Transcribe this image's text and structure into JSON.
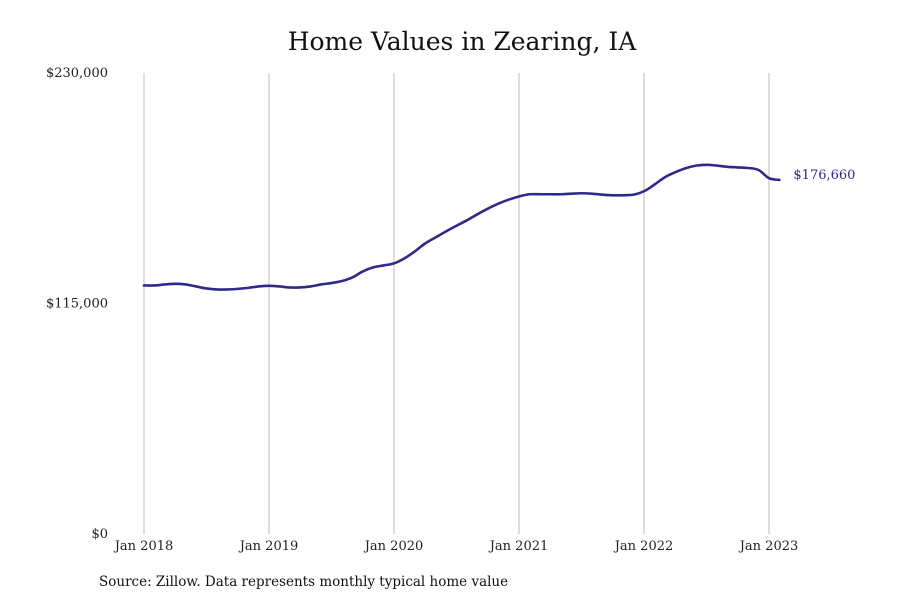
{
  "chart_data": {
    "type": "line",
    "title": "Home Values in Zearing, IA",
    "xlabel": "",
    "ylabel": "",
    "ylim": [
      0,
      230000
    ],
    "y_ticks": [
      {
        "value": 0,
        "label": "$0"
      },
      {
        "value": 115000,
        "label": "$115,000"
      },
      {
        "value": 230000,
        "label": "$230,000"
      }
    ],
    "x_ticks": [
      {
        "value": "2018-01",
        "label": "Jan 2018"
      },
      {
        "value": "2019-01",
        "label": "Jan 2019"
      },
      {
        "value": "2020-01",
        "label": "Jan 2020"
      },
      {
        "value": "2021-01",
        "label": "Jan 2021"
      },
      {
        "value": "2022-01",
        "label": "Jan 2022"
      },
      {
        "value": "2023-01",
        "label": "Jan 2023"
      }
    ],
    "grid": "vertical",
    "line_color": "#2e2a8a",
    "series": [
      {
        "name": "",
        "x": [
          "2018-01",
          "2018-02",
          "2018-03",
          "2018-04",
          "2018-05",
          "2018-06",
          "2018-07",
          "2018-08",
          "2018-09",
          "2018-10",
          "2018-11",
          "2018-12",
          "2019-01",
          "2019-02",
          "2019-03",
          "2019-04",
          "2019-05",
          "2019-06",
          "2019-07",
          "2019-08",
          "2019-09",
          "2019-10",
          "2019-11",
          "2019-12",
          "2020-01",
          "2020-02",
          "2020-03",
          "2020-04",
          "2020-05",
          "2020-06",
          "2020-07",
          "2020-08",
          "2020-09",
          "2020-10",
          "2020-11",
          "2020-12",
          "2021-01",
          "2021-02",
          "2021-03",
          "2021-04",
          "2021-05",
          "2021-06",
          "2021-07",
          "2021-08",
          "2021-09",
          "2021-10",
          "2021-11",
          "2021-12",
          "2022-01",
          "2022-02",
          "2022-03",
          "2022-04",
          "2022-05",
          "2022-06",
          "2022-07",
          "2022-08",
          "2022-09",
          "2022-10",
          "2022-11",
          "2022-12",
          "2023-01",
          "2023-02"
        ],
        "values": [
          124000,
          124000,
          124500,
          124800,
          124500,
          123500,
          122500,
          122000,
          122000,
          122300,
          122800,
          123500,
          123800,
          123500,
          123000,
          123000,
          123500,
          124500,
          125200,
          126200,
          128000,
          131000,
          133000,
          134000,
          135000,
          137500,
          141000,
          145000,
          148000,
          151000,
          153800,
          156500,
          159500,
          162300,
          164800,
          166800,
          168400,
          169500,
          169500,
          169500,
          169500,
          169800,
          170000,
          169800,
          169300,
          169000,
          169000,
          169300,
          171000,
          174300,
          178000,
          180500,
          182500,
          183800,
          184200,
          183800,
          183200,
          182900,
          182600,
          181600,
          177500,
          176660
        ]
      }
    ],
    "end_label": "$176,660",
    "source_note": "Source: Zillow. Data represents monthly typical home value"
  }
}
